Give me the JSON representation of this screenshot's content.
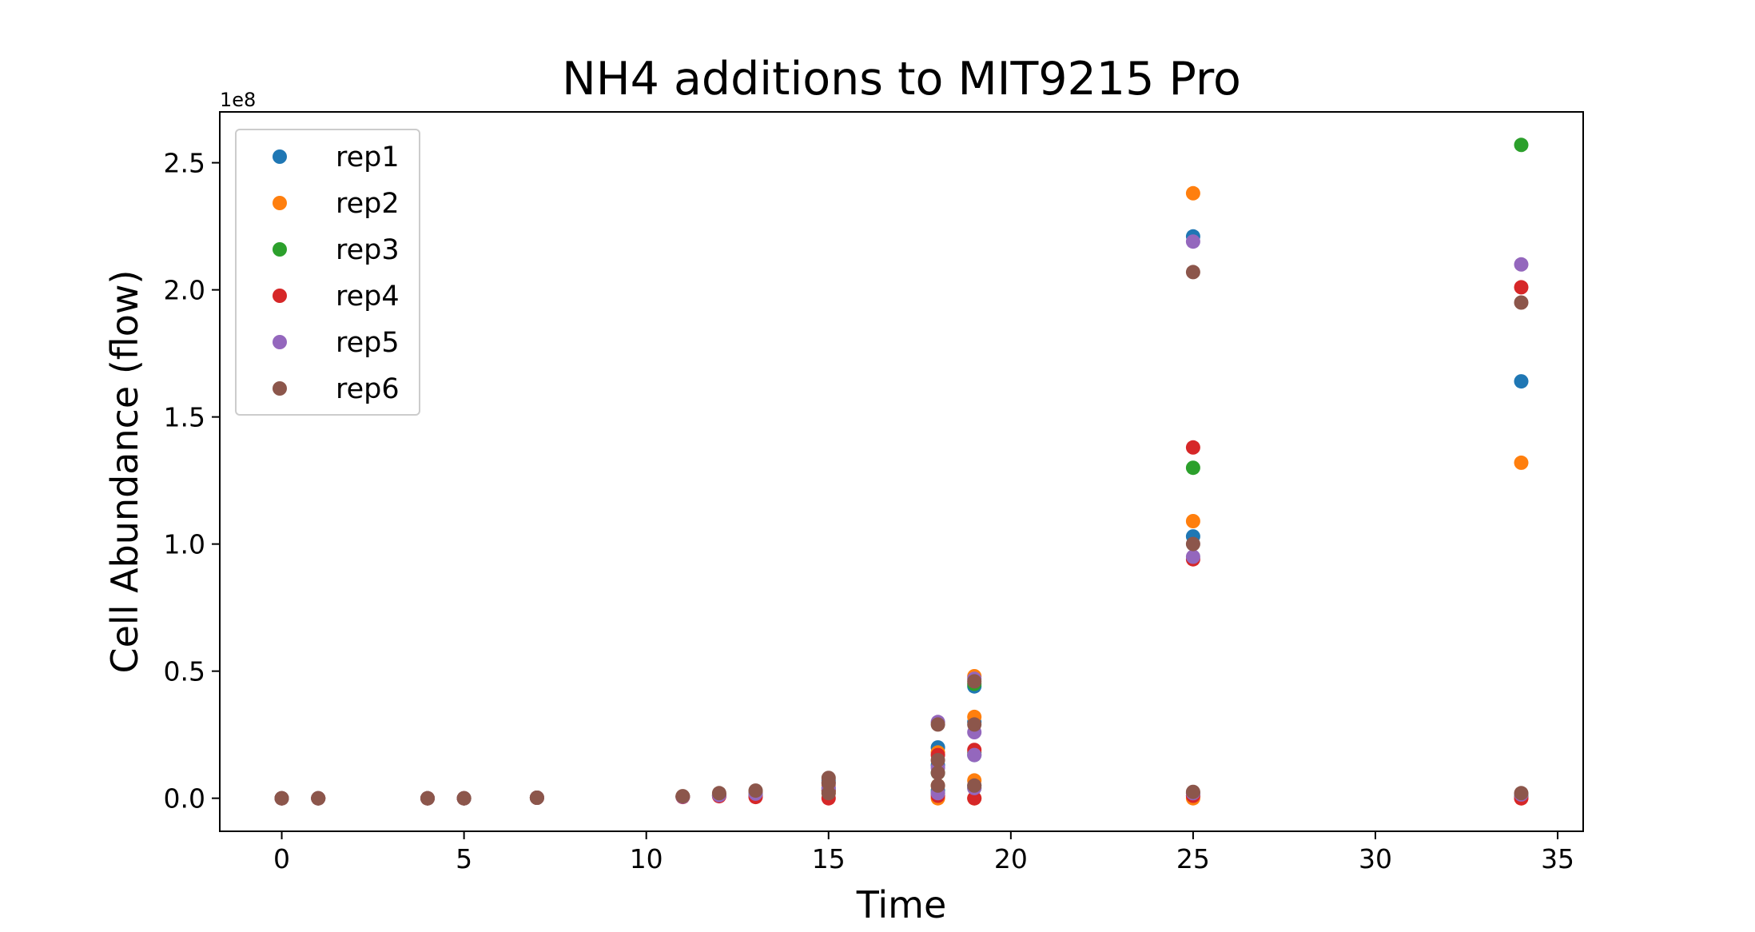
{
  "chart_data": {
    "type": "scatter",
    "title": "NH4 additions to MIT9215 Pro",
    "xlabel": "Time",
    "ylabel": "Cell Abundance (flow)",
    "y_offset_label": "1e8",
    "y_scale_multiplier": 100000000,
    "xlim": [
      -1.7,
      35.7
    ],
    "ylim": [
      -0.13,
      2.7
    ],
    "x_ticks": [
      0,
      5,
      10,
      15,
      20,
      25,
      30,
      35
    ],
    "y_ticks": [
      0.0,
      0.5,
      1.0,
      1.5,
      2.0,
      2.5
    ],
    "x_tick_labels": [
      "0",
      "5",
      "10",
      "15",
      "20",
      "25",
      "30",
      "35"
    ],
    "y_tick_labels": [
      "0.0",
      "0.5",
      "1.0",
      "1.5",
      "2.0",
      "2.5"
    ],
    "grid": false,
    "legend": "upper-left",
    "series": [
      {
        "name": "rep1",
        "color": "#1f77b4",
        "points": [
          [
            0,
            0.0
          ],
          [
            1,
            0.0
          ],
          [
            4,
            0.0
          ],
          [
            5,
            0.0
          ],
          [
            7,
            0.002
          ],
          [
            11,
            0.006
          ],
          [
            12,
            0.012
          ],
          [
            13,
            0.02
          ],
          [
            15,
            0.04
          ],
          [
            15,
            0.07
          ],
          [
            18,
            0.2
          ],
          [
            18,
            0.13
          ],
          [
            18,
            0.03
          ],
          [
            19,
            0.44
          ],
          [
            19,
            0.3
          ],
          [
            19,
            0.17
          ],
          [
            19,
            0.05
          ],
          [
            25,
            2.21
          ],
          [
            25,
            1.03
          ],
          [
            25,
            0.01
          ],
          [
            34,
            1.64
          ],
          [
            34,
            0.01
          ]
        ]
      },
      {
        "name": "rep2",
        "color": "#ff7f0e",
        "points": [
          [
            0,
            0.0
          ],
          [
            1,
            0.0
          ],
          [
            4,
            0.0
          ],
          [
            5,
            0.0
          ],
          [
            7,
            0.002
          ],
          [
            11,
            0.007
          ],
          [
            12,
            0.015
          ],
          [
            13,
            0.022
          ],
          [
            15,
            0.05
          ],
          [
            15,
            0.02
          ],
          [
            18,
            0.0
          ],
          [
            18,
            0.18
          ],
          [
            18,
            0.05
          ],
          [
            19,
            0.48
          ],
          [
            19,
            0.32
          ],
          [
            19,
            0.07
          ],
          [
            19,
            0.0
          ],
          [
            25,
            2.38
          ],
          [
            25,
            1.09
          ],
          [
            25,
            0.0
          ],
          [
            34,
            1.32
          ],
          [
            34,
            0.0
          ]
        ]
      },
      {
        "name": "rep3",
        "color": "#2ca02c",
        "points": [
          [
            0,
            0.0
          ],
          [
            1,
            0.0
          ],
          [
            4,
            0.0
          ],
          [
            5,
            0.0
          ],
          [
            7,
            0.002
          ],
          [
            11,
            0.006
          ],
          [
            12,
            0.01
          ],
          [
            13,
            0.015
          ],
          [
            15,
            0.03
          ],
          [
            18,
            0.1
          ],
          [
            18,
            0.02
          ],
          [
            19,
            0.45
          ],
          [
            19,
            0.18
          ],
          [
            19,
            0.04
          ],
          [
            25,
            1.3
          ],
          [
            25,
            0.02
          ],
          [
            34,
            2.57
          ],
          [
            34,
            0.01
          ]
        ]
      },
      {
        "name": "rep4",
        "color": "#d62728",
        "points": [
          [
            0,
            0.0
          ],
          [
            1,
            0.0
          ],
          [
            4,
            0.0
          ],
          [
            5,
            0.0
          ],
          [
            7,
            0.002
          ],
          [
            11,
            0.005
          ],
          [
            12,
            0.008
          ],
          [
            13,
            0.005
          ],
          [
            15,
            0.0
          ],
          [
            15,
            0.03
          ],
          [
            18,
            0.17
          ],
          [
            18,
            0.01
          ],
          [
            19,
            0.19
          ],
          [
            19,
            0.0
          ],
          [
            25,
            1.38
          ],
          [
            25,
            0.94
          ],
          [
            25,
            0.01
          ],
          [
            34,
            2.01
          ],
          [
            34,
            0.0
          ]
        ]
      },
      {
        "name": "rep5",
        "color": "#9467bd",
        "points": [
          [
            0,
            0.0
          ],
          [
            1,
            0.0
          ],
          [
            4,
            0.0
          ],
          [
            5,
            0.0
          ],
          [
            7,
            0.002
          ],
          [
            11,
            0.006
          ],
          [
            12,
            0.012
          ],
          [
            13,
            0.018
          ],
          [
            15,
            0.06
          ],
          [
            15,
            0.04
          ],
          [
            18,
            0.3
          ],
          [
            18,
            0.12
          ],
          [
            18,
            0.02
          ],
          [
            19,
            0.47
          ],
          [
            19,
            0.26
          ],
          [
            19,
            0.17
          ],
          [
            19,
            0.04
          ],
          [
            25,
            2.19
          ],
          [
            25,
            0.95
          ],
          [
            25,
            0.02
          ],
          [
            34,
            2.1
          ],
          [
            34,
            0.015
          ]
        ]
      },
      {
        "name": "rep6",
        "color": "#8c564b",
        "points": [
          [
            0,
            0.0
          ],
          [
            1,
            0.0
          ],
          [
            4,
            0.0
          ],
          [
            5,
            0.0
          ],
          [
            7,
            0.002
          ],
          [
            11,
            0.008
          ],
          [
            12,
            0.02
          ],
          [
            13,
            0.03
          ],
          [
            15,
            0.08
          ],
          [
            15,
            0.06
          ],
          [
            15,
            0.02
          ],
          [
            18,
            0.29
          ],
          [
            18,
            0.15
          ],
          [
            18,
            0.1
          ],
          [
            18,
            0.05
          ],
          [
            19,
            0.46
          ],
          [
            19,
            0.29
          ],
          [
            19,
            0.05
          ],
          [
            25,
            2.07
          ],
          [
            25,
            1.0
          ],
          [
            25,
            0.025
          ],
          [
            34,
            1.95
          ],
          [
            34,
            0.02
          ]
        ]
      }
    ]
  }
}
